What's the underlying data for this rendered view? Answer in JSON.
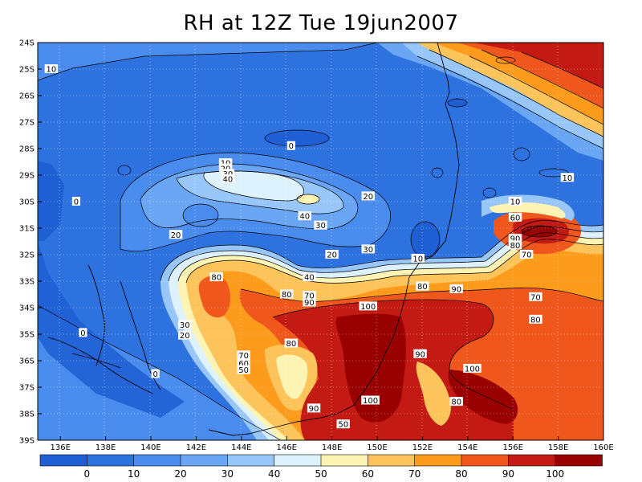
{
  "title": "RH at 12Z Tue 19jun2007",
  "map": {
    "lon_range": [
      135,
      160
    ],
    "lat_range": [
      -39,
      -24
    ],
    "lon_ticks": [
      "136E",
      "138E",
      "140E",
      "142E",
      "144E",
      "146E",
      "148E",
      "150E",
      "152E",
      "154E",
      "156E",
      "158E",
      "160E"
    ],
    "lat_ticks": [
      "24S",
      "25S",
      "26S",
      "27S",
      "28S",
      "29S",
      "30S",
      "31S",
      "32S",
      "33S",
      "34S",
      "35S",
      "36S",
      "37S",
      "38S",
      "39S"
    ],
    "contour_labels": [
      {
        "text": "10",
        "lon": 135.6,
        "lat": -25.0
      },
      {
        "text": "0",
        "lon": 146.2,
        "lat": -27.9
      },
      {
        "text": "10",
        "lon": 143.3,
        "lat": -28.55
      },
      {
        "text": "20",
        "lon": 143.3,
        "lat": -28.75
      },
      {
        "text": "30",
        "lon": 143.4,
        "lat": -28.95
      },
      {
        "text": "40",
        "lon": 143.4,
        "lat": -29.15
      },
      {
        "text": "10",
        "lon": 158.4,
        "lat": -29.1
      },
      {
        "text": "0",
        "lon": 136.7,
        "lat": -30.0
      },
      {
        "text": "20",
        "lon": 149.6,
        "lat": -29.8
      },
      {
        "text": "40",
        "lon": 146.8,
        "lat": -30.55
      },
      {
        "text": "30",
        "lon": 147.5,
        "lat": -30.9
      },
      {
        "text": "20",
        "lon": 141.1,
        "lat": -31.25
      },
      {
        "text": "10",
        "lon": 156.1,
        "lat": -30.0
      },
      {
        "text": "60",
        "lon": 156.1,
        "lat": -30.6
      },
      {
        "text": "90",
        "lon": 156.1,
        "lat": -31.4
      },
      {
        "text": "80",
        "lon": 156.1,
        "lat": -31.65
      },
      {
        "text": "70",
        "lon": 156.6,
        "lat": -32.0
      },
      {
        "text": "20",
        "lon": 148.0,
        "lat": -32.0
      },
      {
        "text": "30",
        "lon": 149.6,
        "lat": -31.8
      },
      {
        "text": "10",
        "lon": 151.8,
        "lat": -32.15
      },
      {
        "text": "80",
        "lon": 152.0,
        "lat": -33.2
      },
      {
        "text": "80",
        "lon": 142.9,
        "lat": -32.85
      },
      {
        "text": "40",
        "lon": 147.0,
        "lat": -32.85
      },
      {
        "text": "80",
        "lon": 146.0,
        "lat": -33.5
      },
      {
        "text": "90",
        "lon": 147.0,
        "lat": -33.8
      },
      {
        "text": "70",
        "lon": 147.0,
        "lat": -33.55
      },
      {
        "text": "90",
        "lon": 153.5,
        "lat": -33.3
      },
      {
        "text": "100",
        "lon": 149.6,
        "lat": -33.95
      },
      {
        "text": "70",
        "lon": 157.0,
        "lat": -33.6
      },
      {
        "text": "80",
        "lon": 157.0,
        "lat": -34.45
      },
      {
        "text": "30",
        "lon": 141.5,
        "lat": -34.65
      },
      {
        "text": "20",
        "lon": 141.5,
        "lat": -35.05
      },
      {
        "text": "0",
        "lon": 137.0,
        "lat": -34.95
      },
      {
        "text": "80",
        "lon": 146.2,
        "lat": -35.35
      },
      {
        "text": "70",
        "lon": 144.1,
        "lat": -35.8
      },
      {
        "text": "60",
        "lon": 144.1,
        "lat": -36.1
      },
      {
        "text": "50",
        "lon": 144.1,
        "lat": -36.35
      },
      {
        "text": "90",
        "lon": 151.9,
        "lat": -35.75
      },
      {
        "text": "0",
        "lon": 140.2,
        "lat": -36.5
      },
      {
        "text": "100",
        "lon": 154.2,
        "lat": -36.3
      },
      {
        "text": "100",
        "lon": 149.7,
        "lat": -37.5
      },
      {
        "text": "80",
        "lon": 153.5,
        "lat": -37.55
      },
      {
        "text": "90",
        "lon": 147.2,
        "lat": -37.8
      },
      {
        "text": "50",
        "lon": 148.5,
        "lat": -38.4
      }
    ]
  },
  "colorbar": {
    "labels": [
      "0",
      "10",
      "20",
      "30",
      "40",
      "50",
      "60",
      "70",
      "80",
      "90",
      "100"
    ],
    "colors": [
      "#1f5fd4",
      "#2e72e0",
      "#4a8ced",
      "#6aa6f4",
      "#98c6f9",
      "#ddf2fd",
      "#fdf4b4",
      "#fdc45c",
      "#fc9b1c",
      "#f0571c",
      "#c41a14",
      "#990000"
    ]
  }
}
